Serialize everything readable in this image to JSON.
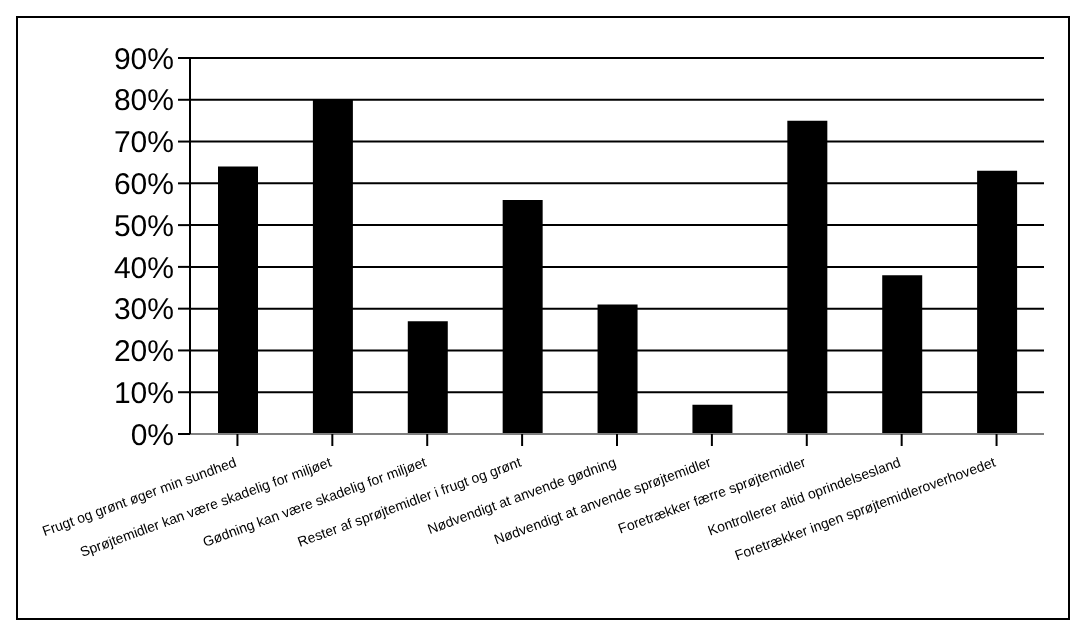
{
  "chart_data": {
    "type": "bar",
    "categories": [
      "Frugt og grønt øger min sundhed",
      "Sprøjtemidler kan være skadelig for miljøet",
      "Gødning kan være skadelig for miljøet",
      "Rester af sprøjtemidler i frugt og grønt",
      "Nødvendigt at anvende gødning",
      "Nødvendigt at anvende sprøjtemidler",
      "Foretrækker færre sprøjtemidler",
      "Kontrollerer altid oprindelsesland",
      "Foretrækker ingen sprøjtemidleroverhovedet"
    ],
    "values": [
      64,
      80,
      27,
      56,
      31,
      7,
      75,
      38,
      63
    ],
    "color": "#000000",
    "ylim": [
      0,
      90
    ],
    "yticks": [
      {
        "value": 0,
        "label": "0%"
      },
      {
        "value": 10,
        "label": "10%"
      },
      {
        "value": 20,
        "label": "20%"
      },
      {
        "value": 30,
        "label": "30%"
      },
      {
        "value": 40,
        "label": "40%"
      },
      {
        "value": 50,
        "label": "50%"
      },
      {
        "value": 60,
        "label": "60%"
      },
      {
        "value": 70,
        "label": "70%"
      },
      {
        "value": 80,
        "label": "80%"
      },
      {
        "value": 90,
        "label": "90%"
      }
    ],
    "grid": "y"
  }
}
